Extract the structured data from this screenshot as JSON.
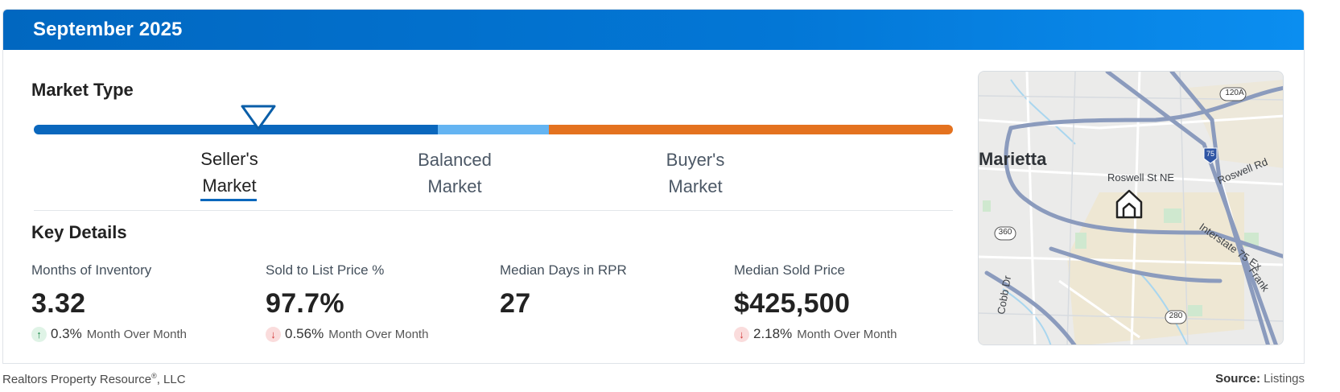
{
  "header": {
    "title": "September 2025"
  },
  "market_type": {
    "title": "Market Type",
    "labels": [
      {
        "line1": "Seller's",
        "line2": "Market"
      },
      {
        "line1": "Balanced",
        "line2": "Market"
      },
      {
        "line1": "Buyer's",
        "line2": "Market"
      }
    ],
    "selected": "Seller's Market",
    "colors": {
      "seller": "#0a67bd",
      "balanced": "#64b4f2",
      "buyer": "#e4721f"
    }
  },
  "key_details": {
    "title": "Key Details",
    "stats": [
      {
        "label": "Months of Inventory",
        "value": "3.32",
        "direction": "up",
        "change": "0.3%",
        "period": "Month Over Month"
      },
      {
        "label": "Sold to List Price %",
        "value": "97.7%",
        "direction": "down",
        "change": "0.56%",
        "period": "Month Over Month"
      },
      {
        "label": "Median Days in RPR",
        "value": "27"
      },
      {
        "label": "Median Sold Price",
        "value": "$425,500",
        "direction": "down",
        "change": "2.18%",
        "period": "Month Over Month"
      }
    ]
  },
  "map": {
    "city": "Marietta",
    "roads": {
      "roswell_st": "Roswell St NE",
      "roswell_rd": "Roswell Rd",
      "interstate": "Interstate 75 Ex",
      "franklin": "Frank",
      "cobb": "Cobb Dr"
    },
    "shields": {
      "i75": "75",
      "r120a": "120A",
      "r360": "360",
      "r280": "280"
    },
    "marker_icon": "home-icon"
  },
  "footer": {
    "company": "Realtors Property Resource",
    "registered": "®",
    "company_suffix": ", LLC",
    "source_label": "Source:",
    "source_value": "Listings"
  }
}
